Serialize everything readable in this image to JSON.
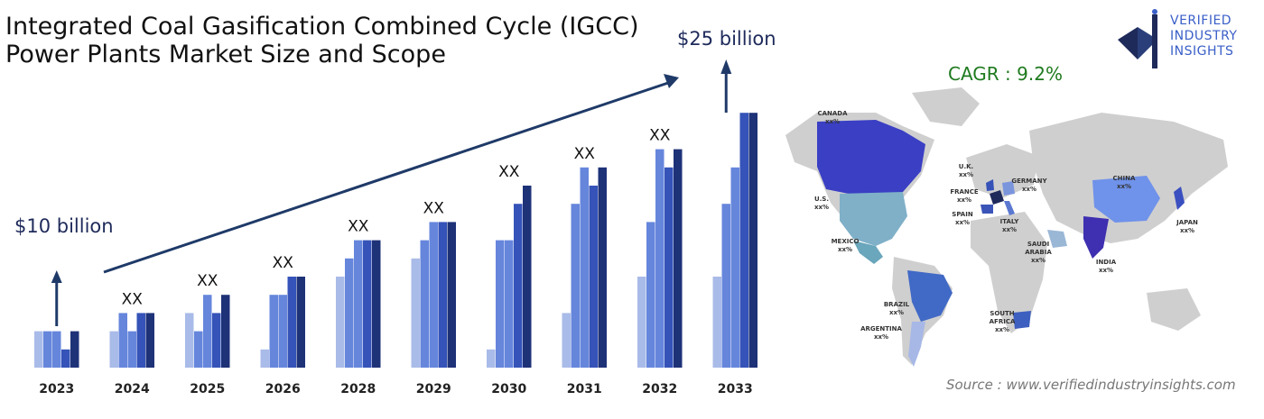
{
  "title_lines": [
    "Integrated Coal Gasification Combined Cycle (IGCC)",
    "Power Plants Market Size and Scope"
  ],
  "cagr_text": "CAGR : 9.2%",
  "source_text": "Source : www.verifiedindustryinsights.com",
  "logo": {
    "lines": [
      "VERIFIED",
      "INDUSTRY",
      "INSIGHTS"
    ]
  },
  "colors": {
    "light": "#a9bbe8",
    "mid": "#6686dc",
    "dark": "#3553b8",
    "darkest": "#1e3278",
    "arrow": "#1f3a68"
  },
  "chart_data": {
    "type": "bar",
    "categories": [
      "2023",
      "2024",
      "2025",
      "2026",
      "2028",
      "2029",
      "2030",
      "2031",
      "2032",
      "2033"
    ],
    "series": [
      {
        "values": [
          2,
          2,
          3,
          1,
          5,
          6,
          1,
          3,
          5,
          5
        ]
      },
      {
        "values": [
          2,
          3,
          2,
          4,
          6,
          7,
          7,
          9,
          8,
          9
        ]
      },
      {
        "values": [
          2,
          2,
          4,
          4,
          7,
          8,
          7,
          11,
          12,
          11
        ]
      },
      {
        "values": [
          1,
          3,
          3,
          5,
          7,
          8,
          9,
          10,
          11,
          14
        ]
      },
      {
        "values": [
          2,
          3,
          4,
          5,
          7,
          8,
          10,
          11,
          12,
          14
        ]
      }
    ],
    "value_labels": [
      "",
      "XX",
      "XX",
      "XX",
      "XX",
      "XX",
      "XX",
      "XX",
      "XX",
      ""
    ],
    "annotations": {
      "start": "$10 billion",
      "end": "$25 billion"
    }
  },
  "map_labels": [
    {
      "name": "CANADA",
      "value": "xx%"
    },
    {
      "name": "U.S.",
      "value": "xx%"
    },
    {
      "name": "MEXICO",
      "value": "xx%"
    },
    {
      "name": "BRAZIL",
      "value": "xx%"
    },
    {
      "name": "ARGENTINA",
      "value": "xx%"
    },
    {
      "name": "U.K.",
      "value": "xx%"
    },
    {
      "name": "FRANCE",
      "value": "xx%"
    },
    {
      "name": "GERMANY",
      "value": "xx%"
    },
    {
      "name": "SPAIN",
      "value": "xx%"
    },
    {
      "name": "ITALY",
      "value": "xx%"
    },
    {
      "name": "SAUDI ARABIA",
      "value": "xx%"
    },
    {
      "name": "SOUTH AFRICA",
      "value": "xx%"
    },
    {
      "name": "CHINA",
      "value": "xx%"
    },
    {
      "name": "INDIA",
      "value": "xx%"
    },
    {
      "name": "JAPAN",
      "value": "xx%"
    }
  ]
}
